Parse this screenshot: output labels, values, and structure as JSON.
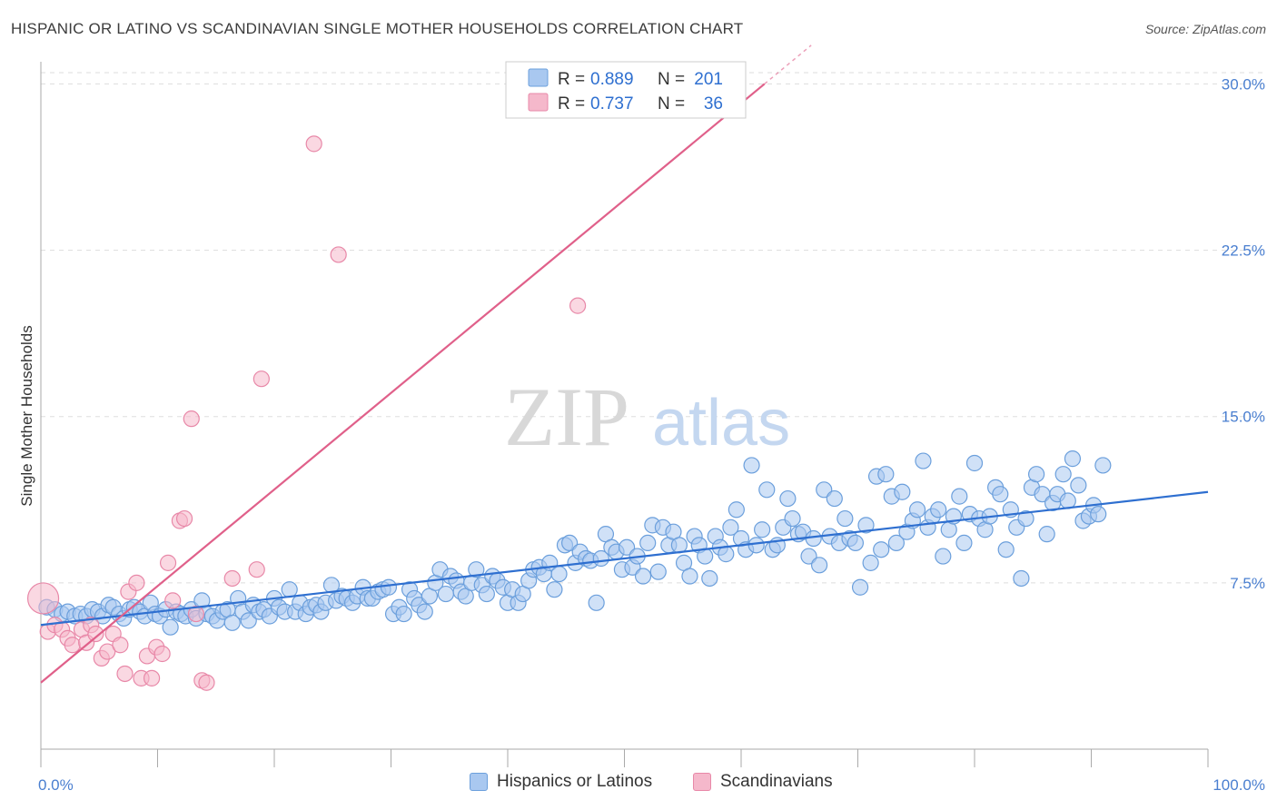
{
  "header": {
    "title": "HISPANIC OR LATINO VS SCANDINAVIAN SINGLE MOTHER HOUSEHOLDS CORRELATION CHART",
    "source": "Source: ZipAtlas.com"
  },
  "watermark": {
    "zip": "ZIP",
    "atlas": "atlas"
  },
  "colors": {
    "blue_fill": "#a9c8f0",
    "blue_stroke": "#6b9fdc",
    "blue_line": "#2e6fd0",
    "pink_fill": "#f5b8cb",
    "pink_stroke": "#e888a8",
    "pink_line": "#e0608a",
    "tick": "#4a7fd0",
    "grid": "#dddddd"
  },
  "legend": {
    "rows": [
      {
        "r_label": "R =",
        "r_value": "0.889",
        "n_label": "N =",
        "n_value": "201"
      },
      {
        "r_label": "R =",
        "r_value": "0.737",
        "n_label": "N =",
        "n_value": "36"
      }
    ]
  },
  "bottom_legend": {
    "blue_label": "Hispanics or Latinos",
    "pink_label": "Scandinavians"
  },
  "chart_data": {
    "type": "scatter",
    "ylabel": "Single Mother Households",
    "xlim": [
      0,
      100
    ],
    "ylim": [
      0,
      31
    ],
    "y_ticks": [
      {
        "value": 7.5,
        "label": "7.5%"
      },
      {
        "value": 15.0,
        "label": "15.0%"
      },
      {
        "value": 22.5,
        "label": "22.5%"
      },
      {
        "value": 30.0,
        "label": "30.0%"
      }
    ],
    "x_tick_labels": {
      "left": "0.0%",
      "right": "100.0%"
    },
    "x_minor_ticks": [
      0,
      10,
      20,
      30,
      40,
      50,
      60,
      70,
      80,
      90,
      100
    ],
    "grid": "horizontal dashed",
    "legend_position": "top-center",
    "series": [
      {
        "name": "Hispanics or Latinos",
        "trend": {
          "x": [
            0,
            100
          ],
          "y": [
            5.6,
            11.6
          ]
        },
        "points": [
          [
            0.5,
            6.4
          ],
          [
            1.2,
            6.3
          ],
          [
            1.8,
            6.1
          ],
          [
            2.3,
            6.2
          ],
          [
            2.9,
            6.0
          ],
          [
            3.4,
            6.1
          ],
          [
            3.9,
            6.0
          ],
          [
            4.4,
            6.3
          ],
          [
            4.9,
            6.2
          ],
          [
            5.3,
            6.0
          ],
          [
            5.8,
            6.5
          ],
          [
            6.2,
            6.4
          ],
          [
            6.7,
            6.1
          ],
          [
            7.1,
            5.9
          ],
          [
            7.6,
            6.3
          ],
          [
            8.0,
            6.4
          ],
          [
            8.5,
            6.2
          ],
          [
            8.9,
            6.0
          ],
          [
            9.4,
            6.6
          ],
          [
            9.8,
            6.1
          ],
          [
            10.2,
            6.0
          ],
          [
            10.7,
            6.3
          ],
          [
            11.1,
            5.5
          ],
          [
            11.6,
            6.2
          ],
          [
            12.0,
            6.1
          ],
          [
            12.4,
            6.0
          ],
          [
            12.9,
            6.3
          ],
          [
            13.3,
            5.9
          ],
          [
            13.8,
            6.7
          ],
          [
            14.2,
            6.1
          ],
          [
            14.7,
            6.0
          ],
          [
            15.1,
            5.8
          ],
          [
            15.6,
            6.2
          ],
          [
            16.0,
            6.3
          ],
          [
            16.4,
            5.7
          ],
          [
            16.9,
            6.8
          ],
          [
            17.3,
            6.2
          ],
          [
            17.8,
            5.8
          ],
          [
            18.2,
            6.5
          ],
          [
            18.7,
            6.2
          ],
          [
            19.1,
            6.3
          ],
          [
            19.6,
            6.0
          ],
          [
            20.0,
            6.8
          ],
          [
            20.4,
            6.4
          ],
          [
            20.9,
            6.2
          ],
          [
            21.3,
            7.2
          ],
          [
            21.8,
            6.2
          ],
          [
            22.2,
            6.6
          ],
          [
            22.7,
            6.1
          ],
          [
            23.1,
            6.4
          ],
          [
            23.6,
            6.5
          ],
          [
            24.0,
            6.2
          ],
          [
            24.4,
            6.6
          ],
          [
            24.9,
            7.4
          ],
          [
            25.3,
            6.7
          ],
          [
            25.8,
            6.9
          ],
          [
            26.2,
            6.8
          ],
          [
            26.7,
            6.6
          ],
          [
            27.1,
            6.9
          ],
          [
            27.6,
            7.3
          ],
          [
            28.0,
            6.8
          ],
          [
            28.4,
            6.8
          ],
          [
            28.9,
            7.1
          ],
          [
            29.3,
            7.2
          ],
          [
            29.8,
            7.3
          ],
          [
            30.2,
            6.1
          ],
          [
            30.7,
            6.4
          ],
          [
            31.1,
            6.1
          ],
          [
            31.6,
            7.2
          ],
          [
            32.0,
            6.8
          ],
          [
            32.4,
            6.5
          ],
          [
            32.9,
            6.2
          ],
          [
            33.3,
            6.9
          ],
          [
            33.8,
            7.5
          ],
          [
            34.2,
            8.1
          ],
          [
            34.7,
            7.0
          ],
          [
            35.1,
            7.8
          ],
          [
            35.6,
            7.6
          ],
          [
            36.0,
            7.1
          ],
          [
            36.4,
            6.9
          ],
          [
            36.9,
            7.5
          ],
          [
            37.3,
            8.1
          ],
          [
            37.8,
            7.4
          ],
          [
            38.2,
            7.0
          ],
          [
            38.7,
            7.8
          ],
          [
            39.1,
            7.6
          ],
          [
            39.6,
            7.3
          ],
          [
            40.0,
            6.6
          ],
          [
            40.4,
            7.2
          ],
          [
            40.9,
            6.6
          ],
          [
            41.3,
            7.0
          ],
          [
            41.8,
            7.6
          ],
          [
            42.2,
            8.1
          ],
          [
            42.7,
            8.2
          ],
          [
            43.1,
            7.9
          ],
          [
            43.6,
            8.4
          ],
          [
            44.0,
            7.2
          ],
          [
            44.4,
            7.9
          ],
          [
            44.9,
            9.2
          ],
          [
            45.3,
            9.3
          ],
          [
            45.8,
            8.4
          ],
          [
            46.2,
            8.9
          ],
          [
            46.7,
            8.6
          ],
          [
            47.1,
            8.5
          ],
          [
            47.6,
            6.6
          ],
          [
            48.0,
            8.6
          ],
          [
            48.4,
            9.7
          ],
          [
            48.9,
            9.1
          ],
          [
            49.3,
            8.9
          ],
          [
            49.8,
            8.1
          ],
          [
            50.2,
            9.1
          ],
          [
            50.7,
            8.2
          ],
          [
            51.1,
            8.7
          ],
          [
            51.6,
            7.8
          ],
          [
            52.0,
            9.3
          ],
          [
            52.4,
            10.1
          ],
          [
            52.9,
            8.0
          ],
          [
            53.3,
            10.0
          ],
          [
            53.8,
            9.2
          ],
          [
            54.2,
            9.8
          ],
          [
            54.7,
            9.2
          ],
          [
            55.1,
            8.4
          ],
          [
            55.6,
            7.8
          ],
          [
            56.0,
            9.6
          ],
          [
            56.4,
            9.2
          ],
          [
            56.9,
            8.7
          ],
          [
            57.3,
            7.7
          ],
          [
            57.8,
            9.6
          ],
          [
            58.2,
            9.1
          ],
          [
            58.7,
            8.8
          ],
          [
            59.1,
            10.0
          ],
          [
            59.6,
            10.8
          ],
          [
            60.0,
            9.5
          ],
          [
            60.4,
            9.0
          ],
          [
            60.9,
            12.8
          ],
          [
            61.3,
            9.2
          ],
          [
            61.8,
            9.9
          ],
          [
            62.2,
            11.7
          ],
          [
            62.7,
            9.0
          ],
          [
            63.1,
            9.2
          ],
          [
            63.6,
            10.0
          ],
          [
            64.0,
            11.3
          ],
          [
            64.4,
            10.4
          ],
          [
            64.9,
            9.7
          ],
          [
            65.3,
            9.8
          ],
          [
            65.8,
            8.7
          ],
          [
            66.2,
            9.5
          ],
          [
            66.7,
            8.3
          ],
          [
            67.1,
            11.7
          ],
          [
            67.6,
            9.6
          ],
          [
            68.0,
            11.3
          ],
          [
            68.4,
            9.3
          ],
          [
            68.9,
            10.4
          ],
          [
            69.3,
            9.5
          ],
          [
            69.8,
            9.3
          ],
          [
            70.2,
            7.3
          ],
          [
            70.7,
            10.1
          ],
          [
            71.1,
            8.4
          ],
          [
            71.6,
            12.3
          ],
          [
            72.0,
            9.0
          ],
          [
            72.4,
            12.4
          ],
          [
            72.9,
            11.4
          ],
          [
            73.3,
            9.3
          ],
          [
            73.8,
            11.6
          ],
          [
            74.2,
            9.8
          ],
          [
            74.7,
            10.3
          ],
          [
            75.1,
            10.8
          ],
          [
            75.6,
            13.0
          ],
          [
            76.0,
            10.0
          ],
          [
            76.4,
            10.5
          ],
          [
            76.9,
            10.8
          ],
          [
            77.3,
            8.7
          ],
          [
            77.8,
            9.9
          ],
          [
            78.2,
            10.5
          ],
          [
            78.7,
            11.4
          ],
          [
            79.1,
            9.3
          ],
          [
            79.6,
            10.6
          ],
          [
            80.0,
            12.9
          ],
          [
            80.4,
            10.4
          ],
          [
            80.9,
            9.9
          ],
          [
            81.3,
            10.5
          ],
          [
            81.8,
            11.8
          ],
          [
            82.2,
            11.5
          ],
          [
            82.7,
            9.0
          ],
          [
            83.1,
            10.8
          ],
          [
            83.6,
            10.0
          ],
          [
            84.0,
            7.7
          ],
          [
            84.4,
            10.4
          ],
          [
            84.9,
            11.8
          ],
          [
            85.3,
            12.4
          ],
          [
            85.8,
            11.5
          ],
          [
            86.2,
            9.7
          ],
          [
            86.7,
            11.1
          ],
          [
            87.1,
            11.5
          ],
          [
            87.6,
            12.4
          ],
          [
            88.0,
            11.2
          ],
          [
            88.4,
            13.1
          ],
          [
            88.9,
            11.9
          ],
          [
            89.3,
            10.3
          ],
          [
            89.8,
            10.5
          ],
          [
            90.2,
            11.0
          ],
          [
            90.6,
            10.6
          ],
          [
            91.0,
            12.8
          ]
        ]
      },
      {
        "name": "Scandinavians",
        "trend": {
          "x": [
            0,
            62
          ],
          "y": [
            3.0,
            30.0
          ]
        },
        "points": [
          [
            0.2,
            6.8
          ],
          [
            0.6,
            5.3
          ],
          [
            1.2,
            5.6
          ],
          [
            1.8,
            5.4
          ],
          [
            2.3,
            5.0
          ],
          [
            2.7,
            4.7
          ],
          [
            3.5,
            5.4
          ],
          [
            3.9,
            4.8
          ],
          [
            4.3,
            5.6
          ],
          [
            4.7,
            5.2
          ],
          [
            5.2,
            4.1
          ],
          [
            5.7,
            4.4
          ],
          [
            6.2,
            5.2
          ],
          [
            6.8,
            4.7
          ],
          [
            7.2,
            3.4
          ],
          [
            7.5,
            7.1
          ],
          [
            8.2,
            7.5
          ],
          [
            8.6,
            3.2
          ],
          [
            9.1,
            4.2
          ],
          [
            9.5,
            3.2
          ],
          [
            9.9,
            4.6
          ],
          [
            10.4,
            4.3
          ],
          [
            10.9,
            8.4
          ],
          [
            11.3,
            6.7
          ],
          [
            11.9,
            10.3
          ],
          [
            12.3,
            10.4
          ],
          [
            12.9,
            14.9
          ],
          [
            13.3,
            6.1
          ],
          [
            13.8,
            3.1
          ],
          [
            14.2,
            3.0
          ],
          [
            16.4,
            7.7
          ],
          [
            18.5,
            8.1
          ],
          [
            18.9,
            16.7
          ],
          [
            23.4,
            27.3
          ],
          [
            25.5,
            22.3
          ],
          [
            46.0,
            20.0
          ]
        ]
      }
    ]
  }
}
